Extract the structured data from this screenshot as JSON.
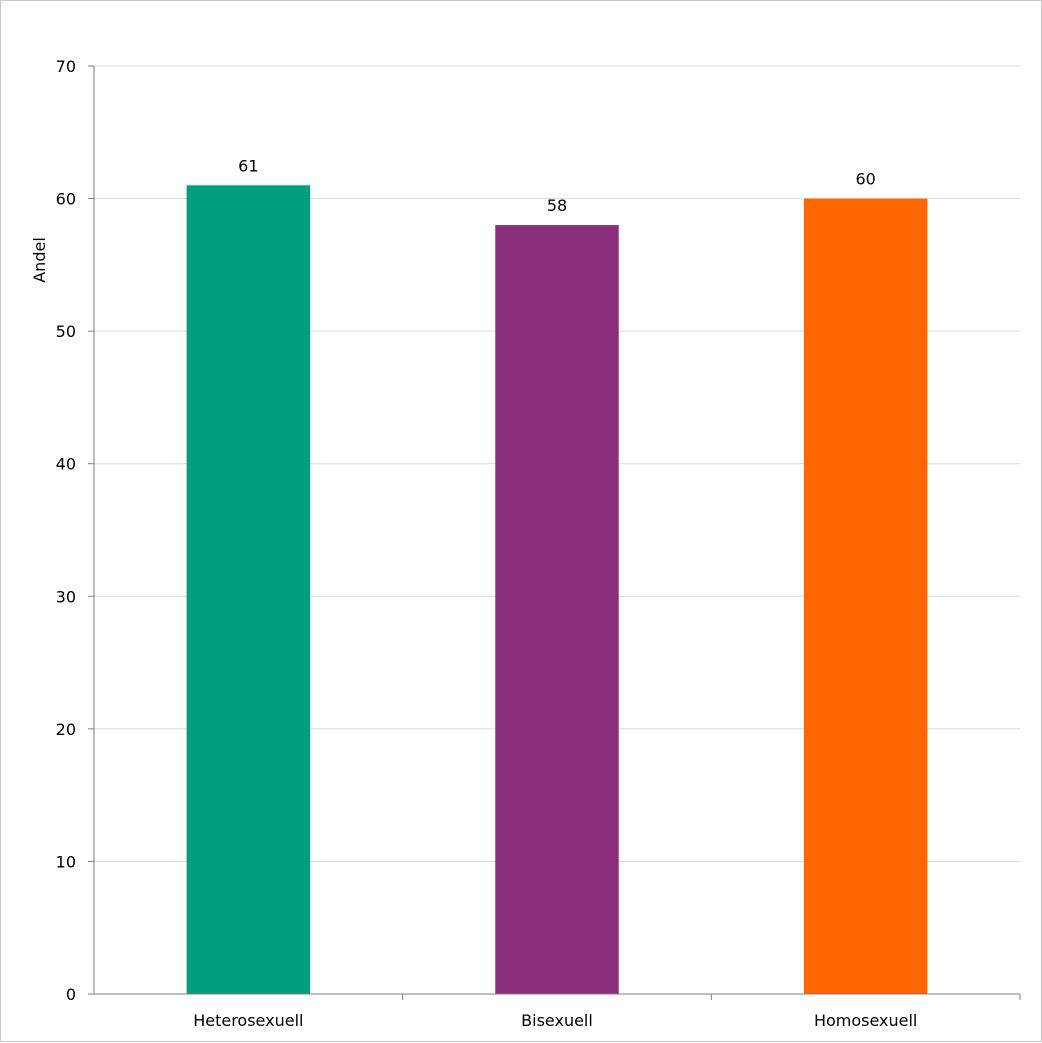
{
  "chart_data": {
    "type": "bar",
    "title": "",
    "xlabel": "",
    "ylabel": "Andel",
    "ylim": [
      0,
      70
    ],
    "yticks": [
      0,
      10,
      20,
      30,
      40,
      50,
      60,
      70
    ],
    "grid": true,
    "legend": "none",
    "categories": [
      "Heterosexuell",
      "Bisexuell",
      "Homosexuell"
    ],
    "values": [
      61,
      58,
      60
    ],
    "colors": [
      "#009e7e",
      "#8b2e7e",
      "#ff6600"
    ],
    "data_labels": [
      "61",
      "58",
      "60"
    ]
  }
}
